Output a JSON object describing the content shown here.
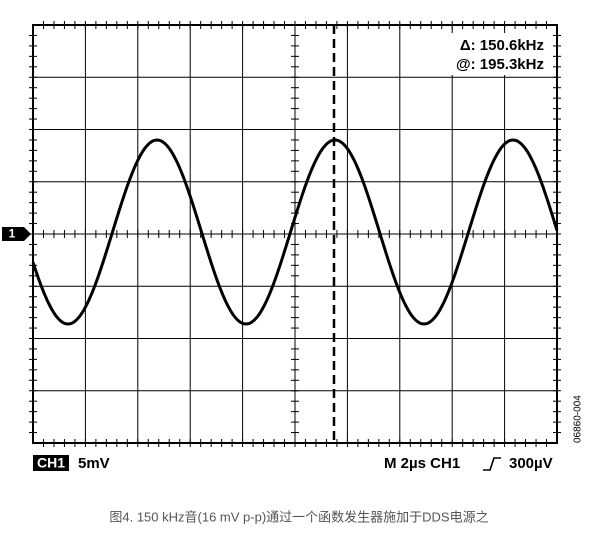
{
  "screen": {
    "cursor_readout": [
      "Δ: 150.6kHz",
      "@: 195.3kHz"
    ],
    "channel_marker": "1"
  },
  "status_bar": {
    "channel": "CH1",
    "scale": "5mV",
    "timebase": "M 2µs CH1",
    "trigger_level": "300µV"
  },
  "figure_id": "06860-004",
  "caption": "图4. 150 kHz音(16 mV p-p)通过一个函数发生器施加于DDS电源之"
}
